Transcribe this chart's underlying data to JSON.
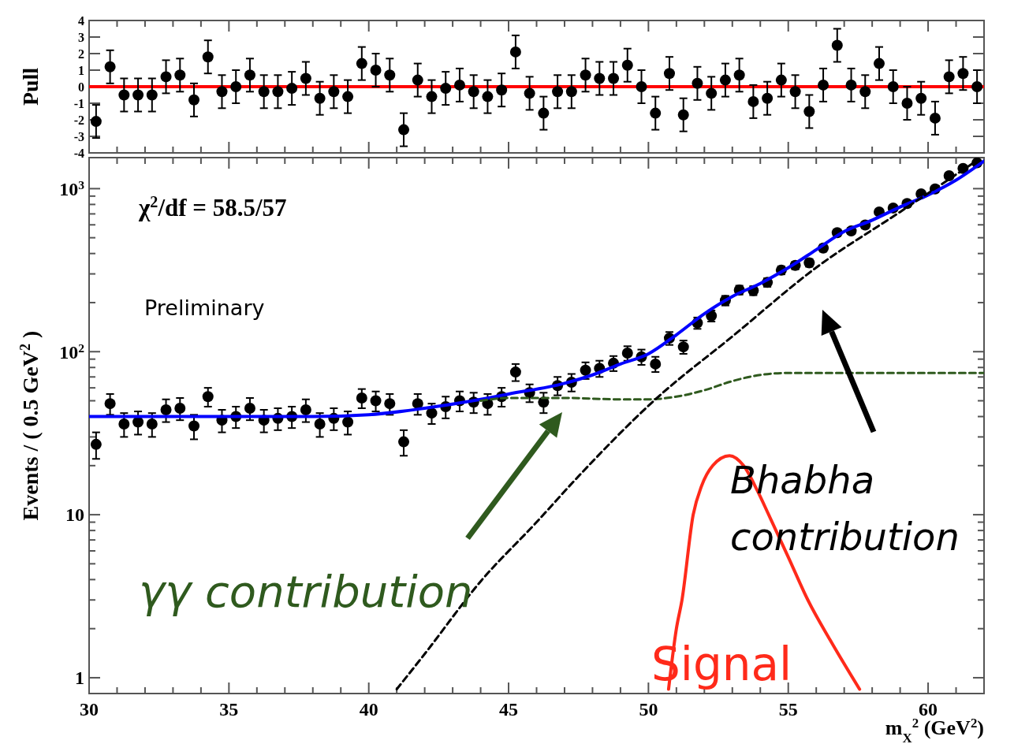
{
  "chart_data": [
    {
      "type": "scatter",
      "ylabel": "Pull",
      "xlim": [
        30,
        62
      ],
      "ylim": [
        -4,
        4
      ],
      "tick_labels": "y",
      "xticks": [
        30,
        {
          "value": 31,
          "label": null
        },
        {
          "value": 32,
          "label": null
        },
        {
          "value": 33,
          "label": null
        },
        {
          "value": 34,
          "label": null
        },
        35,
        {
          "value": 36,
          "label": null
        },
        {
          "value": 37,
          "label": null
        },
        {
          "value": 38,
          "label": null
        },
        {
          "value": 39,
          "label": null
        },
        40,
        {
          "value": 41,
          "label": null
        },
        {
          "value": 42,
          "label": null
        },
        {
          "value": 43,
          "label": null
        },
        {
          "value": 44,
          "label": null
        },
        45,
        {
          "value": 46,
          "label": null
        },
        {
          "value": 47,
          "label": null
        },
        {
          "value": 48,
          "label": null
        },
        {
          "value": 49,
          "label": null
        },
        50,
        {
          "value": 51,
          "label": null
        },
        {
          "value": 52,
          "label": null
        },
        {
          "value": 53,
          "label": null
        },
        {
          "value": 54,
          "label": null
        },
        55,
        {
          "value": 56,
          "label": null
        },
        {
          "value": 57,
          "label": null
        },
        {
          "value": 58,
          "label": null
        },
        {
          "value": 59,
          "label": null
        },
        60,
        {
          "value": 61,
          "label": null
        }
      ],
      "yticks": [
        -4,
        -3,
        -2,
        -1,
        0,
        1,
        2,
        3,
        4
      ],
      "ref_lines": [
        {
          "axis": "y",
          "value": 0,
          "color": "#ff0000"
        }
      ],
      "series": [
        {
          "color": "#000000",
          "marker": "circle",
          "x": [
            30.25,
            30.75,
            31.25,
            31.75,
            32.25,
            32.75,
            33.25,
            33.75,
            34.25,
            34.75,
            35.25,
            35.75,
            36.25,
            36.75,
            37.25,
            37.75,
            38.25,
            38.75,
            39.25,
            39.75,
            40.25,
            40.75,
            41.25,
            41.75,
            42.25,
            42.75,
            43.25,
            43.75,
            44.25,
            44.75,
            45.25,
            45.75,
            46.25,
            46.75,
            47.25,
            47.75,
            48.25,
            48.75,
            49.25,
            49.75,
            50.25,
            50.75,
            51.25,
            51.75,
            52.25,
            52.75,
            53.25,
            53.75,
            54.25,
            54.75,
            55.25,
            55.75,
            56.25,
            56.75,
            57.25,
            57.75,
            58.25,
            58.75,
            59.25,
            59.75,
            60.25,
            60.75,
            61.25,
            61.75
          ],
          "values": [
            -2.1,
            1.2,
            -0.5,
            -0.5,
            -0.5,
            0.6,
            0.7,
            -0.8,
            1.8,
            -0.3,
            0.0,
            0.7,
            -0.3,
            -0.3,
            -0.1,
            0.5,
            -0.7,
            -0.3,
            -0.6,
            1.4,
            1.0,
            0.7,
            -2.6,
            0.4,
            -0.6,
            -0.1,
            0.1,
            -0.3,
            -0.6,
            -0.2,
            2.1,
            -0.4,
            -1.6,
            -0.3,
            -0.3,
            0.7,
            0.5,
            0.5,
            1.3,
            0.0,
            -1.6,
            0.8,
            -1.7,
            0.2,
            -0.4,
            0.4,
            0.7,
            -0.9,
            -0.7,
            0.4,
            -0.3,
            -1.5,
            0.1,
            2.5,
            0.1,
            -0.3,
            1.4,
            0.0,
            -1.0,
            -0.7,
            -1.9,
            0.6,
            0.8,
            0.0
          ],
          "errors": [
            1,
            1,
            1,
            1,
            1,
            1,
            1,
            1,
            1,
            1,
            1,
            1,
            1,
            1,
            1,
            1,
            1,
            1,
            1,
            1,
            1,
            1,
            1,
            1,
            1,
            1,
            1,
            1,
            1,
            1,
            1,
            1,
            1,
            1,
            1,
            1,
            1,
            1,
            1,
            1,
            1,
            1,
            1,
            1,
            1,
            1,
            1,
            1,
            1,
            1,
            1,
            1,
            1,
            1,
            1,
            1,
            1,
            1,
            1,
            1,
            1,
            1,
            1,
            1
          ]
        }
      ]
    },
    {
      "type": "scatter",
      "ylabel": "Events / ( 0.5 GeV$^{2}$ )",
      "xlabel": "m$_{X}$$^{2}$ (GeV$^{2}$)",
      "xlim": [
        30,
        62
      ],
      "ylim": [
        0.8,
        1550
      ],
      "log": true,
      "xticks": [
        30,
        {
          "value": 31,
          "label": null
        },
        {
          "value": 32,
          "label": null
        },
        {
          "value": 33,
          "label": null
        },
        {
          "value": 34,
          "label": null
        },
        35,
        {
          "value": 36,
          "label": null
        },
        {
          "value": 37,
          "label": null
        },
        {
          "value": 38,
          "label": null
        },
        {
          "value": 39,
          "label": null
        },
        40,
        {
          "value": 41,
          "label": null
        },
        {
          "value": 42,
          "label": null
        },
        {
          "value": 43,
          "label": null
        },
        {
          "value": 44,
          "label": null
        },
        45,
        {
          "value": 46,
          "label": null
        },
        {
          "value": 47,
          "label": null
        },
        {
          "value": 48,
          "label": null
        },
        {
          "value": 49,
          "label": null
        },
        50,
        {
          "value": 51,
          "label": null
        },
        {
          "value": 52,
          "label": null
        },
        {
          "value": 53,
          "label": null
        },
        {
          "value": 54,
          "label": null
        },
        55,
        {
          "value": 56,
          "label": null
        },
        {
          "value": 57,
          "label": null
        },
        {
          "value": 58,
          "label": null
        },
        {
          "value": 59,
          "label": null
        },
        60,
        {
          "value": 61,
          "label": null
        }
      ],
      "yticks": [
        1,
        {
          "value": 2,
          "label": null
        },
        {
          "value": 3,
          "label": null
        },
        {
          "value": 4,
          "label": null
        },
        {
          "value": 5,
          "label": null
        },
        {
          "value": 6,
          "label": null
        },
        {
          "value": 7,
          "label": null
        },
        {
          "value": 8,
          "label": null
        },
        {
          "value": 9,
          "label": null
        },
        10,
        {
          "value": 20,
          "label": null
        },
        {
          "value": 30,
          "label": null
        },
        {
          "value": 40,
          "label": null
        },
        {
          "value": 50,
          "label": null
        },
        {
          "value": 60,
          "label": null
        },
        {
          "value": 70,
          "label": null
        },
        {
          "value": 80,
          "label": null
        },
        {
          "value": 90,
          "label": null
        },
        {
          "value": 100,
          "label": "10$^{2}$"
        },
        {
          "value": 200,
          "label": null
        },
        {
          "value": 300,
          "label": null
        },
        {
          "value": 400,
          "label": null
        },
        {
          "value": 500,
          "label": null
        },
        {
          "value": 600,
          "label": null
        },
        {
          "value": 700,
          "label": null
        },
        {
          "value": 800,
          "label": null
        },
        {
          "value": 900,
          "label": null
        },
        {
          "value": 1000,
          "label": "10$^{3}$"
        }
      ],
      "annotations": [
        "χ$^{2}$/df = 58.5/57",
        "Preliminary"
      ],
      "series": [
        {
          "color": "#000000",
          "marker": "circle",
          "x": [
            30.25,
            30.75,
            31.25,
            31.75,
            32.25,
            32.75,
            33.25,
            33.75,
            34.25,
            34.75,
            35.25,
            35.75,
            36.25,
            36.75,
            37.25,
            37.75,
            38.25,
            38.75,
            39.25,
            39.75,
            40.25,
            40.75,
            41.25,
            41.75,
            42.25,
            42.75,
            43.25,
            43.75,
            44.25,
            44.75,
            45.25,
            45.75,
            46.25,
            46.75,
            47.25,
            47.75,
            48.25,
            48.75,
            49.25,
            49.75,
            50.25,
            50.75,
            51.25,
            51.75,
            52.25,
            52.75,
            53.25,
            53.75,
            54.25,
            54.75,
            55.25,
            55.75,
            56.25,
            56.75,
            57.25,
            57.75,
            58.25,
            58.75,
            59.25,
            59.75,
            60.25,
            60.75,
            61.25,
            61.75
          ],
          "values": [
            27,
            48,
            36,
            37,
            36,
            44,
            45,
            35,
            53,
            38,
            40,
            45,
            38,
            39,
            40,
            44,
            36,
            39,
            37,
            52,
            50,
            48,
            28,
            48,
            42,
            46,
            50,
            49,
            48,
            53,
            75,
            56,
            49,
            62,
            65,
            77,
            79,
            85,
            98,
            93,
            84,
            121,
            107,
            150,
            166,
            206,
            239,
            237,
            266,
            316,
            338,
            351,
            432,
            537,
            550,
            598,
            720,
            761,
            811,
            929,
            995,
            1200,
            1330,
            1440
          ],
          "errors": [
            5,
            7,
            6,
            6,
            6,
            7,
            7,
            6,
            7,
            6,
            6,
            7,
            6,
            6,
            6,
            7,
            6,
            6,
            6,
            7,
            7,
            7,
            5,
            7,
            6,
            7,
            7,
            7,
            7,
            7,
            9,
            7,
            7,
            8,
            8,
            9,
            9,
            9,
            10,
            10,
            9,
            11,
            10,
            12,
            13,
            14,
            15,
            15,
            16,
            18,
            18,
            19,
            21,
            23,
            23,
            24,
            27,
            28,
            28,
            30,
            32,
            35,
            36,
            38
          ]
        },
        {
          "type": "line",
          "color": "#0000ff",
          "x": [
            30,
            35,
            38,
            40,
            42,
            44,
            45,
            47,
            48,
            49,
            50,
            51,
            52,
            53,
            54,
            55,
            56,
            57,
            58,
            59,
            60,
            61,
            62
          ],
          "values": [
            40,
            40,
            40,
            41,
            45,
            51,
            55,
            64,
            72,
            84,
            97,
            127,
            171,
            218,
            262,
            327,
            422,
            546,
            641,
            772,
            915,
            1128,
            1477
          ]
        },
        {
          "type": "line",
          "name": "γγ contribution",
          "color": "#2f5a1e",
          "line_style": "dashed",
          "x": [
            44,
            45,
            47,
            49,
            50,
            51,
            52,
            53,
            54,
            55,
            57,
            60,
            62
          ],
          "values": [
            50,
            52,
            52,
            51,
            51,
            53,
            58,
            66,
            72,
            74,
            74,
            74,
            74
          ]
        },
        {
          "type": "line",
          "name": "Bhabha contribution",
          "color": "#000000",
          "line_style": "dashed",
          "x": [
            41,
            42,
            44,
            46,
            47.4,
            50.25,
            53,
            56,
            59,
            61.75
          ],
          "values": [
            0.85,
            1.4,
            3.9,
            9,
            16.5,
            51,
            124,
            328,
            720,
            1490
          ]
        },
        {
          "type": "line",
          "name": "Signal",
          "color": "#ff2a1a",
          "x": [
            50.72,
            51,
            51.2,
            51.6,
            51.9,
            52.3,
            52.9,
            53.4,
            53.9,
            54.3,
            55,
            55.7,
            56.5,
            57.55
          ],
          "values": [
            0.85,
            2,
            3,
            10,
            15,
            20,
            23,
            20,
            14,
            10,
            5.5,
            3,
            1.7,
            0.85
          ]
        }
      ]
    }
  ]
}
